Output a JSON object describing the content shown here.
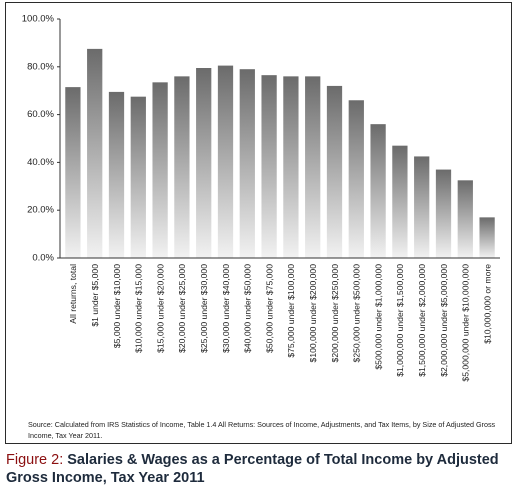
{
  "chart_data": {
    "type": "bar",
    "categories": [
      "All returns, total",
      "$1 under $5,000",
      "$5,000 under $10,000",
      "$10,000 under $15,000",
      "$15,000 under $20,000",
      "$20,000 under $25,000",
      "$25,000 under $30,000",
      "$30,000 under $40,000",
      "$40,000 under $50,000",
      "$50,000 under $75,000",
      "$75,000 under $100,000",
      "$100,000 under $200,000",
      "$200,000 under $250,000",
      "$250,000 under $500,000",
      "$500,000 under $1,000,000",
      "$1,000,000 under $1,500,000",
      "$1,500,000 under $2,000,000",
      "$2,000,000 under $5,000,000",
      "$5,000,000 under $10,000,000",
      "$10,000,000 or more"
    ],
    "values": [
      71.5,
      87.5,
      69.5,
      67.5,
      73.5,
      76,
      79.5,
      80.5,
      79,
      76.5,
      76,
      76,
      72,
      66,
      56,
      47,
      42.5,
      37,
      32.5,
      17
    ],
    "ylim": [
      0,
      100
    ],
    "yticks": [
      "0.0%",
      "20.0%",
      "40.0%",
      "60.0%",
      "80.0%",
      "100.0%"
    ],
    "ytick_values": [
      0,
      20,
      40,
      60,
      80,
      100
    ],
    "grid": false,
    "colors": {
      "bar_top": "#6b6b6b",
      "bar_bottom": "#f2f2f2",
      "axis": "#333333"
    }
  },
  "source": "Source: Calculated from IRS Statistics of Income, Table 1.4 All Returns: Sources of Income, Adjustments, and Tax Items, by Size of Adjusted Gross Income, Tax Year 2011.",
  "caption": {
    "label": "Figure 2:",
    "title": "Salaries & Wages as a Percentage of Total Income by Adjusted Gross Income, Tax Year 2011"
  }
}
